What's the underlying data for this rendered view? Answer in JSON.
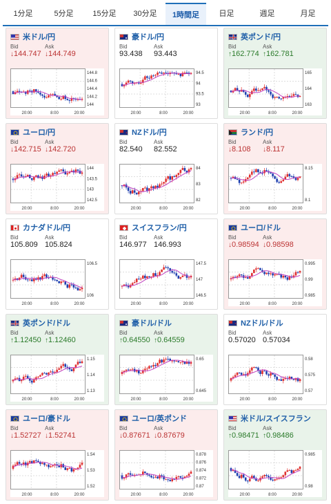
{
  "tabs": [
    "1分足",
    "5分足",
    "15分足",
    "30分足",
    "1時間足",
    "日足",
    "週足",
    "月足"
  ],
  "active_tab": 4,
  "labels": {
    "bid": "Bid",
    "ask": "Ask"
  },
  "colors": {
    "down_bg": "#fcecec",
    "up_bg": "#e9f3ea",
    "up_candle": "#e03030",
    "down_candle": "#2040b0",
    "ma": "#c040c0"
  },
  "cards": [
    {
      "pair": "米ドル/円",
      "flag": "us",
      "dir": "down",
      "bid": "144.747",
      "ask": "144.749",
      "yticks": [
        "144.8",
        "144.6",
        "144.4",
        "144.2",
        "144"
      ],
      "xticks": [
        "20:00",
        "8:00",
        "20:00"
      ]
    },
    {
      "pair": "豪ドル/円",
      "flag": "au",
      "dir": "flat",
      "bid": "93.438",
      "ask": "93.443",
      "yticks": [
        "94.5",
        "94",
        "93.5",
        "93"
      ],
      "xticks": [
        "20:00",
        "8:00",
        "20:00"
      ]
    },
    {
      "pair": "英ポンド/円",
      "flag": "uk",
      "dir": "up",
      "bid": "162.774",
      "ask": "162.781",
      "yticks": [
        "165",
        "164",
        "163"
      ],
      "xticks": [
        "20:00",
        "8:00",
        "20:00"
      ]
    },
    {
      "pair": "ユーロ/円",
      "flag": "eu",
      "dir": "down",
      "bid": "142.715",
      "ask": "142.720",
      "yticks": [
        "144",
        "143.5",
        "143",
        "142.5"
      ],
      "xticks": [
        "20:00",
        "8:00",
        "20:00"
      ]
    },
    {
      "pair": "NZドル/円",
      "flag": "nz",
      "dir": "flat",
      "bid": "82.540",
      "ask": "82.552",
      "yticks": [
        "84",
        "83",
        "82"
      ],
      "xticks": [
        "20:00",
        "8:00",
        "20:00"
      ]
    },
    {
      "pair": "ランド/円",
      "flag": "za",
      "dir": "down",
      "bid": "8.108",
      "ask": "8.117",
      "yticks": [
        "8.15",
        "8.1"
      ],
      "xticks": [
        "20:00",
        "8:00",
        "20:00"
      ]
    },
    {
      "pair": "カナダドル/円",
      "flag": "ca",
      "dir": "flat",
      "bid": "105.809",
      "ask": "105.824",
      "yticks": [
        "106.5",
        "106"
      ],
      "xticks": [
        "20:00",
        "8:00",
        "20:00"
      ]
    },
    {
      "pair": "スイスフラン/円",
      "flag": "ch",
      "dir": "flat",
      "bid": "146.977",
      "ask": "146.993",
      "yticks": [
        "147.5",
        "147",
        "146.5"
      ],
      "xticks": [
        "20:00",
        "8:00",
        "20:00"
      ]
    },
    {
      "pair": "ユーロ/ドル",
      "flag": "eu",
      "dir": "down",
      "bid": "0.98594",
      "ask": "0.98598",
      "yticks": [
        "0.995",
        "0.99",
        "0.985"
      ],
      "xticks": [
        "20:00",
        "8:00",
        "20:00"
      ]
    },
    {
      "pair": "英ポンド/ドル",
      "flag": "uk",
      "dir": "up",
      "bid": "1.12450",
      "ask": "1.12460",
      "yticks": [
        "1.15",
        "1.14",
        "1.13"
      ],
      "xticks": [
        "20:00",
        "8:00",
        "20:00"
      ]
    },
    {
      "pair": "豪ドル/ドル",
      "flag": "au",
      "dir": "up",
      "bid": "0.64550",
      "ask": "0.64559",
      "yticks": [
        "0.65",
        "0.645"
      ],
      "xticks": [
        "20:00",
        "8:00",
        "20:00"
      ]
    },
    {
      "pair": "NZドル/ドル",
      "flag": "nz",
      "dir": "flat",
      "bid": "0.57020",
      "ask": "0.57034",
      "yticks": [
        "0.58",
        "0.575",
        "0.57"
      ],
      "xticks": [
        "20:00",
        "8:00",
        "20:00"
      ]
    },
    {
      "pair": "ユーロ/豪ドル",
      "flag": "eu",
      "dir": "down",
      "bid": "1.52727",
      "ask": "1.52741",
      "yticks": [
        "1.54",
        "1.53",
        "1.52"
      ],
      "xticks": [
        "20:00",
        "8:00",
        "20:00"
      ]
    },
    {
      "pair": "ユーロ/英ポンド",
      "flag": "eu",
      "dir": "down",
      "bid": "0.87671",
      "ask": "0.87679",
      "yticks": [
        "0.878",
        "0.876",
        "0.874",
        "0.872",
        "0.87"
      ],
      "xticks": [
        "20:00",
        "8:00",
        "20:00"
      ]
    },
    {
      "pair": "米ドル/スイスフラン",
      "flag": "us",
      "dir": "up",
      "bid": "0.98471",
      "ask": "0.98486",
      "yticks": [
        "0.985",
        "0.98"
      ],
      "xticks": [
        "20:00",
        "8:00",
        "20:00"
      ]
    }
  ]
}
